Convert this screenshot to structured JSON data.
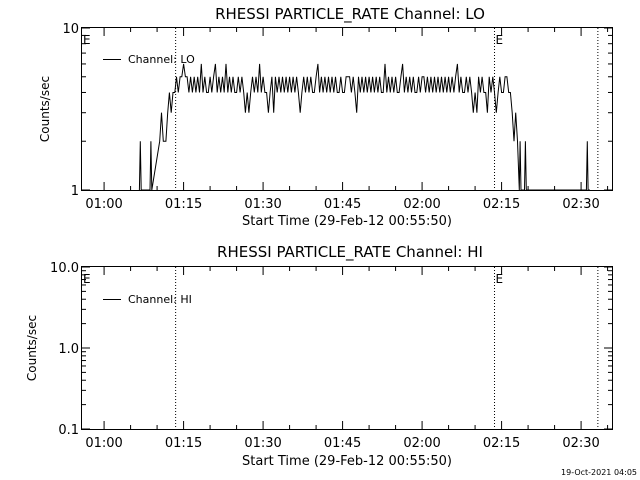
{
  "footer": {
    "timestamp": "19-Oct-2021 04:05"
  },
  "chart_data": [
    {
      "type": "line",
      "title": "RHESSI PARTICLE_RATE Channel: LO",
      "xlabel": "Start Time (29-Feb-12 00:55:50)",
      "ylabel": "Counts/sec",
      "yscale": "log",
      "ylim": [
        1,
        10
      ],
      "ytick_labels": [
        "1",
        "10"
      ],
      "xlim": [
        "00:55:50",
        "02:35:50"
      ],
      "xtick_labels": [
        "01:00",
        "01:15",
        "01:30",
        "01:45",
        "02:00",
        "02:15",
        "02:30"
      ],
      "legend": {
        "position": "top-left",
        "entries": [
          "Channel: LO"
        ]
      },
      "markers": [
        {
          "label": "E",
          "time": "00:55:50"
        },
        {
          "label": "",
          "time": "01:13:30"
        },
        {
          "label": "E",
          "time": "02:13:40"
        },
        {
          "label": "",
          "time": "02:33:10"
        }
      ],
      "series": [
        {
          "name": "Channel: LO",
          "points": [
            [
              "01:06:40",
              1
            ],
            [
              "01:06:50",
              2
            ],
            [
              "01:07:00",
              1
            ],
            [
              "01:08:40",
              1
            ],
            [
              "01:08:50",
              2
            ],
            [
              "01:09:00",
              1
            ],
            [
              "01:10:30",
              2
            ],
            [
              "01:10:50",
              3
            ],
            [
              "01:11:10",
              2
            ],
            [
              "01:11:40",
              2
            ],
            [
              "01:12:00",
              3
            ],
            [
              "01:12:20",
              4
            ],
            [
              "01:12:40",
              3
            ],
            [
              "01:13:00",
              4
            ],
            [
              "01:13:20",
              4
            ],
            [
              "01:13:40",
              5
            ],
            [
              "01:14:00",
              4
            ],
            [
              "01:14:20",
              5
            ],
            [
              "01:14:40",
              5
            ],
            [
              "01:15:00",
              6
            ],
            [
              "01:15:20",
              5
            ],
            [
              "01:15:40",
              5
            ],
            [
              "01:16:00",
              4
            ],
            [
              "01:16:20",
              5
            ],
            [
              "01:16:40",
              4
            ],
            [
              "01:17:00",
              5
            ],
            [
              "01:17:20",
              4
            ],
            [
              "01:17:40",
              5
            ],
            [
              "01:18:00",
              4
            ],
            [
              "01:18:20",
              6
            ],
            [
              "01:18:40",
              4
            ],
            [
              "01:19:00",
              5
            ],
            [
              "01:19:20",
              4
            ],
            [
              "01:19:40",
              4
            ],
            [
              "01:20:00",
              5
            ],
            [
              "01:20:20",
              4
            ],
            [
              "01:20:40",
              5
            ],
            [
              "01:21:00",
              6
            ],
            [
              "01:21:20",
              4
            ],
            [
              "01:21:40",
              5
            ],
            [
              "01:22:00",
              4
            ],
            [
              "01:22:20",
              5
            ],
            [
              "01:22:40",
              4
            ],
            [
              "01:23:00",
              6
            ],
            [
              "01:23:20",
              4
            ],
            [
              "01:23:40",
              5
            ],
            [
              "01:24:00",
              4
            ],
            [
              "01:24:20",
              5
            ],
            [
              "01:24:40",
              4
            ],
            [
              "01:25:00",
              4
            ],
            [
              "01:25:20",
              5
            ],
            [
              "01:25:40",
              4
            ],
            [
              "01:26:00",
              5
            ],
            [
              "01:26:20",
              4
            ],
            [
              "01:26:40",
              3
            ],
            [
              "01:27:00",
              4
            ],
            [
              "01:27:20",
              3
            ],
            [
              "01:27:40",
              4
            ],
            [
              "01:28:00",
              5
            ],
            [
              "01:28:20",
              4
            ],
            [
              "01:28:40",
              5
            ],
            [
              "01:29:00",
              4
            ],
            [
              "01:29:20",
              6
            ],
            [
              "01:29:40",
              4
            ],
            [
              "01:30:00",
              5
            ],
            [
              "01:30:20",
              4
            ],
            [
              "01:30:40",
              4
            ],
            [
              "01:31:00",
              3
            ],
            [
              "01:31:20",
              4
            ],
            [
              "01:31:40",
              5
            ],
            [
              "01:32:00",
              3
            ],
            [
              "01:32:20",
              5
            ],
            [
              "01:32:40",
              4
            ],
            [
              "01:33:00",
              5
            ],
            [
              "01:33:20",
              4
            ],
            [
              "01:33:40",
              5
            ],
            [
              "01:34:00",
              4
            ],
            [
              "01:34:20",
              5
            ],
            [
              "01:34:40",
              4
            ],
            [
              "01:35:00",
              5
            ],
            [
              "01:35:20",
              4
            ],
            [
              "01:35:40",
              5
            ],
            [
              "01:36:00",
              4
            ],
            [
              "01:36:20",
              5
            ],
            [
              "01:36:40",
              4
            ],
            [
              "01:37:00",
              3
            ],
            [
              "01:37:20",
              4
            ],
            [
              "01:37:40",
              5
            ],
            [
              "01:38:00",
              4
            ],
            [
              "01:38:20",
              5
            ],
            [
              "01:38:40",
              4
            ],
            [
              "01:39:00",
              5
            ],
            [
              "01:39:20",
              4
            ],
            [
              "01:39:40",
              4
            ],
            [
              "01:40:00",
              5
            ],
            [
              "01:40:20",
              6
            ],
            [
              "01:40:40",
              4
            ],
            [
              "01:41:00",
              5
            ],
            [
              "01:41:20",
              4
            ],
            [
              "01:41:40",
              5
            ],
            [
              "01:42:00",
              4
            ],
            [
              "01:42:20",
              5
            ],
            [
              "01:42:40",
              4
            ],
            [
              "01:43:00",
              5
            ],
            [
              "01:43:20",
              4
            ],
            [
              "01:43:40",
              5
            ],
            [
              "01:44:00",
              4
            ],
            [
              "01:44:20",
              4
            ],
            [
              "01:44:40",
              5
            ],
            [
              "01:45:00",
              4
            ],
            [
              "01:45:20",
              4
            ],
            [
              "01:45:40",
              5
            ],
            [
              "01:46:00",
              5
            ],
            [
              "01:46:20",
              5
            ],
            [
              "01:46:40",
              4
            ],
            [
              "01:47:00",
              5
            ],
            [
              "01:47:20",
              4
            ],
            [
              "01:47:40",
              3
            ],
            [
              "01:48:00",
              5
            ],
            [
              "01:48:20",
              4
            ],
            [
              "01:48:40",
              5
            ],
            [
              "01:49:00",
              4
            ],
            [
              "01:49:20",
              5
            ],
            [
              "01:49:40",
              4
            ],
            [
              "01:50:00",
              5
            ],
            [
              "01:50:20",
              4
            ],
            [
              "01:50:40",
              5
            ],
            [
              "01:51:00",
              4
            ],
            [
              "01:51:20",
              5
            ],
            [
              "01:51:40",
              4
            ],
            [
              "01:52:00",
              5
            ],
            [
              "01:52:20",
              4
            ],
            [
              "01:52:40",
              4
            ],
            [
              "01:53:00",
              6
            ],
            [
              "01:53:20",
              4
            ],
            [
              "01:53:40",
              5
            ],
            [
              "01:54:00",
              4
            ],
            [
              "01:54:20",
              5
            ],
            [
              "01:54:40",
              4
            ],
            [
              "01:55:00",
              5
            ],
            [
              "01:55:20",
              4
            ],
            [
              "01:55:40",
              4
            ],
            [
              "01:56:00",
              5
            ],
            [
              "01:56:20",
              6
            ],
            [
              "01:56:40",
              4
            ],
            [
              "01:57:00",
              5
            ],
            [
              "01:57:20",
              4
            ],
            [
              "01:57:40",
              5
            ],
            [
              "01:58:00",
              4
            ],
            [
              "01:58:20",
              5
            ],
            [
              "01:58:40",
              4
            ],
            [
              "01:59:00",
              4
            ],
            [
              "01:59:20",
              5
            ],
            [
              "01:59:40",
              4
            ],
            [
              "02:00:00",
              5
            ],
            [
              "02:00:20",
              5
            ],
            [
              "02:00:40",
              4
            ],
            [
              "02:01:00",
              5
            ],
            [
              "02:01:20",
              4
            ],
            [
              "02:01:40",
              5
            ],
            [
              "02:02:00",
              4
            ],
            [
              "02:02:20",
              5
            ],
            [
              "02:02:40",
              4
            ],
            [
              "02:03:00",
              5
            ],
            [
              "02:03:20",
              4
            ],
            [
              "02:03:40",
              5
            ],
            [
              "02:04:00",
              4
            ],
            [
              "02:04:20",
              5
            ],
            [
              "02:04:40",
              4
            ],
            [
              "02:05:00",
              5
            ],
            [
              "02:05:20",
              4
            ],
            [
              "02:05:40",
              5
            ],
            [
              "02:06:00",
              4
            ],
            [
              "02:06:20",
              5
            ],
            [
              "02:06:40",
              6
            ],
            [
              "02:07:00",
              4
            ],
            [
              "02:07:20",
              5
            ],
            [
              "02:07:40",
              4
            ],
            [
              "02:08:00",
              4
            ],
            [
              "02:08:20",
              5
            ],
            [
              "02:08:40",
              4
            ],
            [
              "02:09:00",
              5
            ],
            [
              "02:09:20",
              4
            ],
            [
              "02:09:40",
              3
            ],
            [
              "02:10:00",
              4
            ],
            [
              "02:10:20",
              3
            ],
            [
              "02:10:40",
              5
            ],
            [
              "02:11:00",
              4
            ],
            [
              "02:11:20",
              5
            ],
            [
              "02:11:40",
              4
            ],
            [
              "02:12:00",
              4
            ],
            [
              "02:12:20",
              3
            ],
            [
              "02:12:40",
              5
            ],
            [
              "02:13:00",
              4
            ],
            [
              "02:13:20",
              5
            ],
            [
              "02:13:40",
              4
            ],
            [
              "02:14:00",
              3
            ],
            [
              "02:14:20",
              4
            ],
            [
              "02:14:40",
              5
            ],
            [
              "02:15:00",
              4
            ],
            [
              "02:15:20",
              4
            ],
            [
              "02:15:40",
              5
            ],
            [
              "02:16:00",
              5
            ],
            [
              "02:16:20",
              4
            ],
            [
              "02:16:40",
              4
            ],
            [
              "02:17:00",
              3
            ],
            [
              "02:17:20",
              2
            ],
            [
              "02:17:40",
              3
            ],
            [
              "02:18:00",
              2
            ],
            [
              "02:18:20",
              1
            ],
            [
              "02:18:30",
              2
            ],
            [
              "02:18:40",
              1
            ],
            [
              "02:19:20",
              1
            ],
            [
              "02:19:30",
              2
            ],
            [
              "02:19:40",
              1
            ],
            [
              "02:20:30",
              1
            ],
            [
              "02:21:00",
              1
            ],
            [
              "02:31:00",
              1
            ],
            [
              "02:31:10",
              2
            ],
            [
              "02:31:20",
              1
            ],
            [
              "02:31:40",
              1
            ]
          ]
        }
      ]
    },
    {
      "type": "line",
      "title": "RHESSI PARTICLE_RATE Channel: HI",
      "xlabel": "Start Time (29-Feb-12 00:55:50)",
      "ylabel": "Counts/sec",
      "yscale": "log",
      "ylim": [
        0.1,
        10
      ],
      "ytick_labels": [
        "0.1",
        "1.0",
        "10.0"
      ],
      "xlim": [
        "00:55:50",
        "02:35:50"
      ],
      "xtick_labels": [
        "01:00",
        "01:15",
        "01:30",
        "01:45",
        "02:00",
        "02:15",
        "02:30"
      ],
      "legend": {
        "position": "top-left",
        "entries": [
          "Channel: HI"
        ]
      },
      "markers": [
        {
          "label": "E",
          "time": "00:55:50"
        },
        {
          "label": "",
          "time": "01:13:30"
        },
        {
          "label": "E",
          "time": "02:13:40"
        },
        {
          "label": "",
          "time": "02:33:10"
        }
      ],
      "series": [
        {
          "name": "Channel: HI",
          "points": []
        }
      ]
    }
  ]
}
